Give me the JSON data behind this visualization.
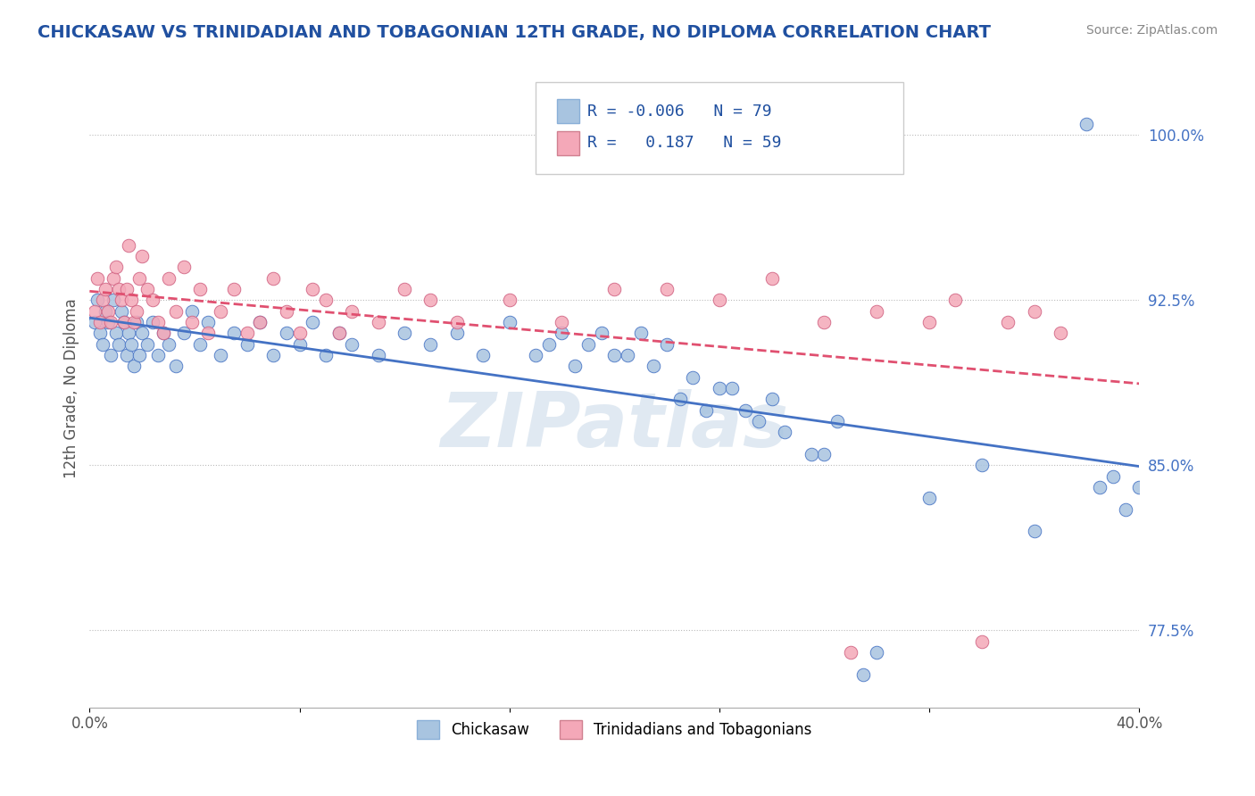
{
  "title": "CHICKASAW VS TRINIDADIAN AND TOBAGONIAN 12TH GRADE, NO DIPLOMA CORRELATION CHART",
  "source": "Source: ZipAtlas.com",
  "ylabel": "12th Grade, No Diploma",
  "yticks": [
    77.5,
    85.0,
    92.5,
    100.0
  ],
  "ytick_labels": [
    "77.5%",
    "85.0%",
    "92.5%",
    "100.0%"
  ],
  "xmin": 0.0,
  "xmax": 40.0,
  "ymin": 74.0,
  "ymax": 103.0,
  "legend_R1": "-0.006",
  "legend_N1": "79",
  "legend_R2": "0.187",
  "legend_N2": "59",
  "color_blue": "#a8c4e0",
  "color_pink": "#f4a8b8",
  "line_blue": "#4472c4",
  "line_pink": "#e05070",
  "watermark": "ZIPatlas",
  "watermark_color": "#c8d8e8",
  "title_color": "#2050a0",
  "legend_color": "#2050a0",
  "chick_x": [
    0.2,
    0.3,
    0.4,
    0.5,
    0.6,
    0.7,
    0.8,
    0.9,
    1.0,
    1.1,
    1.2,
    1.3,
    1.4,
    1.5,
    1.6,
    1.7,
    1.8,
    1.9,
    2.0,
    2.2,
    2.4,
    2.6,
    2.8,
    3.0,
    3.3,
    3.6,
    3.9,
    4.2,
    4.5,
    5.0,
    5.5,
    6.0,
    6.5,
    7.0,
    7.5,
    8.0,
    8.5,
    9.0,
    9.5,
    10.0,
    11.0,
    12.0,
    13.0,
    14.0,
    15.0,
    16.0,
    17.0,
    18.0,
    19.0,
    20.0,
    21.0,
    22.0,
    23.0,
    24.0,
    25.0,
    26.0,
    28.0,
    30.0,
    32.0,
    34.0,
    36.0,
    38.0,
    38.5,
    39.0,
    39.5,
    40.0,
    17.5,
    18.5,
    19.5,
    20.5,
    21.5,
    22.5,
    23.5,
    24.5,
    25.5,
    26.5,
    27.5,
    28.5,
    29.5
  ],
  "chick_y": [
    91.5,
    92.5,
    91.0,
    90.5,
    92.0,
    91.5,
    90.0,
    92.5,
    91.0,
    90.5,
    92.0,
    91.5,
    90.0,
    91.0,
    90.5,
    89.5,
    91.5,
    90.0,
    91.0,
    90.5,
    91.5,
    90.0,
    91.0,
    90.5,
    89.5,
    91.0,
    92.0,
    90.5,
    91.5,
    90.0,
    91.0,
    90.5,
    91.5,
    90.0,
    91.0,
    90.5,
    91.5,
    90.0,
    91.0,
    90.5,
    90.0,
    91.0,
    90.5,
    91.0,
    90.0,
    91.5,
    90.0,
    91.0,
    90.5,
    90.0,
    91.0,
    90.5,
    89.0,
    88.5,
    87.5,
    88.0,
    85.5,
    76.5,
    83.5,
    85.0,
    82.0,
    100.5,
    84.0,
    84.5,
    83.0,
    84.0,
    90.5,
    89.5,
    91.0,
    90.0,
    89.5,
    88.0,
    87.5,
    88.5,
    87.0,
    86.5,
    85.5,
    87.0,
    75.5
  ],
  "trin_x": [
    0.2,
    0.3,
    0.4,
    0.5,
    0.6,
    0.7,
    0.8,
    0.9,
    1.0,
    1.1,
    1.2,
    1.3,
    1.4,
    1.5,
    1.6,
    1.7,
    1.8,
    1.9,
    2.0,
    2.2,
    2.4,
    2.6,
    2.8,
    3.0,
    3.3,
    3.6,
    3.9,
    4.2,
    4.5,
    5.0,
    5.5,
    6.0,
    6.5,
    7.0,
    7.5,
    8.0,
    8.5,
    9.0,
    9.5,
    10.0,
    11.0,
    12.0,
    13.0,
    14.0,
    16.0,
    18.0,
    20.0,
    22.0,
    24.0,
    26.0,
    28.0,
    29.0,
    30.0,
    32.0,
    33.0,
    34.0,
    35.0,
    36.0,
    37.0
  ],
  "trin_y": [
    92.0,
    93.5,
    91.5,
    92.5,
    93.0,
    92.0,
    91.5,
    93.5,
    94.0,
    93.0,
    92.5,
    91.5,
    93.0,
    95.0,
    92.5,
    91.5,
    92.0,
    93.5,
    94.5,
    93.0,
    92.5,
    91.5,
    91.0,
    93.5,
    92.0,
    94.0,
    91.5,
    93.0,
    91.0,
    92.0,
    93.0,
    91.0,
    91.5,
    93.5,
    92.0,
    91.0,
    93.0,
    92.5,
    91.0,
    92.0,
    91.5,
    93.0,
    92.5,
    91.5,
    92.5,
    91.5,
    93.0,
    93.0,
    92.5,
    93.5,
    91.5,
    76.5,
    92.0,
    91.5,
    92.5,
    77.0,
    91.5,
    92.0,
    91.0
  ]
}
